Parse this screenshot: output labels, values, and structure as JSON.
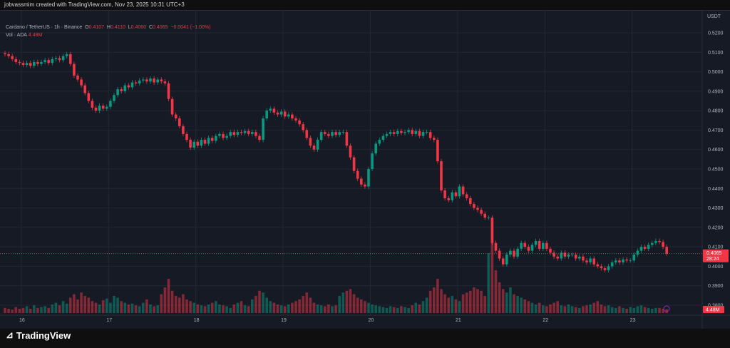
{
  "header": {
    "attribution": "jobvassmim created with TradingView.com, Nov 23, 2025 10:31 UTC+3"
  },
  "legend": {
    "symbol": "Cardano / TetherUS · 1h · Binance",
    "o_label": "O",
    "o": "0.4107",
    "h_label": "H",
    "h": "0.4110",
    "l_label": "L",
    "l": "0.4060",
    "c_label": "C",
    "c": "0.4065",
    "change": "−0.0041 (−1.00%)",
    "vol_label": "Vol · ADA",
    "vol": "4.48M"
  },
  "axis": {
    "currency": "USDT",
    "last_price": "0.4065",
    "countdown": "28:24",
    "last_volume": "4.48M"
  },
  "footer": {
    "brand": "TradingView"
  },
  "colors": {
    "up": "#089981",
    "down": "#f23645",
    "background": "#161a25"
  },
  "chart_data": {
    "type": "candlestick",
    "interval": "1h",
    "ylim": [
      0.38,
      0.52
    ],
    "yticks": [
      "0.5200",
      "0.5100",
      "0.5000",
      "0.4900",
      "0.4800",
      "0.4700",
      "0.4600",
      "0.4500",
      "0.4400",
      "0.4300",
      "0.4200",
      "0.4100",
      "0.4000",
      "0.3900",
      "0.3800"
    ],
    "xticks": [
      "16",
      "17",
      "18",
      "19",
      "20",
      "21",
      "22",
      "23"
    ],
    "grid": true,
    "first_open": 0.5095,
    "closes": [
      0.509,
      0.508,
      0.5065,
      0.505,
      0.5045,
      0.5035,
      0.5045,
      0.503,
      0.505,
      0.504,
      0.505,
      0.506,
      0.5045,
      0.5065,
      0.507,
      0.506,
      0.508,
      0.509,
      0.504,
      0.498,
      0.496,
      0.493,
      0.489,
      0.485,
      0.4815,
      0.48,
      0.4825,
      0.481,
      0.482,
      0.485,
      0.488,
      0.491,
      0.49,
      0.493,
      0.492,
      0.4945,
      0.494,
      0.4955,
      0.496,
      0.495,
      0.4965,
      0.4945,
      0.496,
      0.495,
      0.494,
      0.486,
      0.478,
      0.476,
      0.472,
      0.468,
      0.465,
      0.461,
      0.464,
      0.462,
      0.465,
      0.463,
      0.466,
      0.4645,
      0.467,
      0.468,
      0.466,
      0.467,
      0.469,
      0.4675,
      0.469,
      0.4685,
      0.4695,
      0.468,
      0.469,
      0.467,
      0.465,
      0.476,
      0.48,
      0.481,
      0.479,
      0.478,
      0.4795,
      0.477,
      0.478,
      0.476,
      0.475,
      0.473,
      0.47,
      0.466,
      0.462,
      0.46,
      0.465,
      0.469,
      0.468,
      0.467,
      0.469,
      0.4675,
      0.469,
      0.469,
      0.462,
      0.456,
      0.449,
      0.445,
      0.442,
      0.441,
      0.45,
      0.458,
      0.463,
      0.465,
      0.467,
      0.468,
      0.469,
      0.468,
      0.4695,
      0.4685,
      0.469,
      0.47,
      0.468,
      0.4695,
      0.467,
      0.469,
      0.469,
      0.466,
      0.465,
      0.454,
      0.439,
      0.435,
      0.434,
      0.438,
      0.436,
      0.441,
      0.437,
      0.435,
      0.432,
      0.43,
      0.429,
      0.427,
      0.425,
      0.425,
      0.412,
      0.408,
      0.404,
      0.401,
      0.406,
      0.408,
      0.405,
      0.409,
      0.412,
      0.41,
      0.408,
      0.411,
      0.413,
      0.409,
      0.412,
      0.409,
      0.407,
      0.405,
      0.404,
      0.407,
      0.405,
      0.406,
      0.406,
      0.404,
      0.405,
      0.403,
      0.402,
      0.404,
      0.401,
      0.4,
      0.399,
      0.398,
      0.4,
      0.402,
      0.403,
      0.402,
      0.4035,
      0.403,
      0.403,
      0.406,
      0.408,
      0.41,
      0.409,
      0.411,
      0.412,
      0.413,
      0.4125,
      0.41,
      0.4065
    ],
    "volumes_m": [
      6,
      5,
      4,
      7,
      5,
      6,
      8,
      5,
      9,
      6,
      7,
      8,
      6,
      10,
      12,
      9,
      14,
      11,
      18,
      22,
      16,
      24,
      20,
      18,
      14,
      12,
      10,
      15,
      17,
      12,
      20,
      18,
      14,
      12,
      10,
      11,
      9,
      8,
      12,
      16,
      10,
      8,
      9,
      22,
      30,
      40,
      26,
      20,
      18,
      22,
      16,
      14,
      12,
      10,
      9,
      8,
      10,
      12,
      14,
      10,
      9,
      8,
      6,
      10,
      12,
      14,
      9,
      8,
      16,
      20,
      26,
      24,
      18,
      14,
      12,
      10,
      9,
      8,
      10,
      12,
      14,
      16,
      20,
      24,
      18,
      12,
      10,
      9,
      8,
      10,
      8,
      9,
      20,
      24,
      26,
      28,
      22,
      18,
      16,
      14,
      12,
      10,
      9,
      8,
      7,
      6,
      8,
      7,
      6,
      8,
      7,
      6,
      9,
      12,
      10,
      14,
      18,
      26,
      30,
      40,
      28,
      22,
      18,
      20,
      16,
      14,
      22,
      24,
      26,
      30,
      28,
      26,
      20,
      70,
      85,
      50,
      36,
      28,
      24,
      30,
      22,
      20,
      18,
      16,
      14,
      12,
      10,
      12,
      9,
      8,
      10,
      12,
      14,
      9,
      8,
      10,
      8,
      7,
      6,
      8,
      9,
      10,
      12,
      14,
      10,
      8,
      9,
      7,
      6,
      8,
      6,
      5,
      7,
      6,
      8,
      9,
      7,
      6,
      5,
      6,
      6,
      5,
      4.48
    ]
  }
}
